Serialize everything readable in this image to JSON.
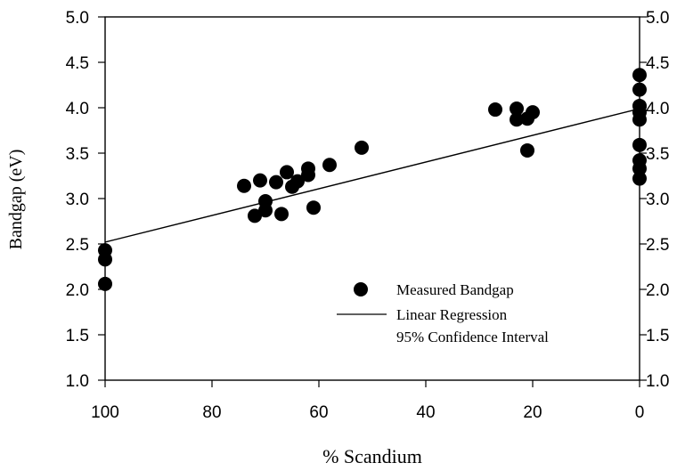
{
  "chart_data": {
    "type": "scatter",
    "xlabel": "% Scandium",
    "ylabel": "Bandgap (eV)",
    "xlim": [
      100,
      0
    ],
    "ylim": [
      1.0,
      5.0
    ],
    "x_reversed": true,
    "x_ticks": [
      100,
      80,
      60,
      40,
      20,
      0
    ],
    "y_ticks": [
      1.0,
      1.5,
      2.0,
      2.5,
      3.0,
      3.5,
      4.0,
      4.5,
      5.0
    ],
    "x_tick_labels": [
      "100",
      "80",
      "60",
      "40",
      "20",
      "0"
    ],
    "y_tick_labels": [
      "1.0",
      "1.5",
      "2.0",
      "2.5",
      "3.0",
      "3.5",
      "4.0",
      "4.5",
      "5.0"
    ],
    "right_y_axis_labels": true,
    "grid": false,
    "legend_position": "bottom-right",
    "series": [
      {
        "name": "Measured Bandgap",
        "kind": "scatter",
        "color": "#000000",
        "points": [
          {
            "x": 100,
            "y": 2.43
          },
          {
            "x": 100,
            "y": 2.33
          },
          {
            "x": 100,
            "y": 2.06
          },
          {
            "x": 74,
            "y": 3.14
          },
          {
            "x": 71,
            "y": 3.2
          },
          {
            "x": 72,
            "y": 2.81
          },
          {
            "x": 70,
            "y": 2.97
          },
          {
            "x": 70,
            "y": 2.87
          },
          {
            "x": 68,
            "y": 3.18
          },
          {
            "x": 67,
            "y": 2.83
          },
          {
            "x": 66,
            "y": 3.29
          },
          {
            "x": 65,
            "y": 3.13
          },
          {
            "x": 64,
            "y": 3.19
          },
          {
            "x": 62,
            "y": 3.33
          },
          {
            "x": 62,
            "y": 3.26
          },
          {
            "x": 61,
            "y": 2.9
          },
          {
            "x": 58,
            "y": 3.37
          },
          {
            "x": 52,
            "y": 3.56
          },
          {
            "x": 27,
            "y": 3.98
          },
          {
            "x": 23,
            "y": 3.99
          },
          {
            "x": 23,
            "y": 3.87
          },
          {
            "x": 21,
            "y": 3.88
          },
          {
            "x": 20,
            "y": 3.95
          },
          {
            "x": 21,
            "y": 3.53
          },
          {
            "x": 0,
            "y": 4.36
          },
          {
            "x": 0,
            "y": 4.2
          },
          {
            "x": 0,
            "y": 4.02
          },
          {
            "x": 0,
            "y": 3.95
          },
          {
            "x": 0,
            "y": 3.87
          },
          {
            "x": 0,
            "y": 3.59
          },
          {
            "x": 0,
            "y": 3.42
          },
          {
            "x": 0,
            "y": 3.33
          },
          {
            "x": 0,
            "y": 3.22
          }
        ]
      },
      {
        "name": "Linear Regression",
        "kind": "line",
        "color": "#000000",
        "points": [
          {
            "x": 100,
            "y": 2.52
          },
          {
            "x": 0,
            "y": 3.99
          }
        ]
      },
      {
        "name": "95% Confidence Interval",
        "kind": "line",
        "color": "#000000",
        "points": []
      }
    ]
  }
}
